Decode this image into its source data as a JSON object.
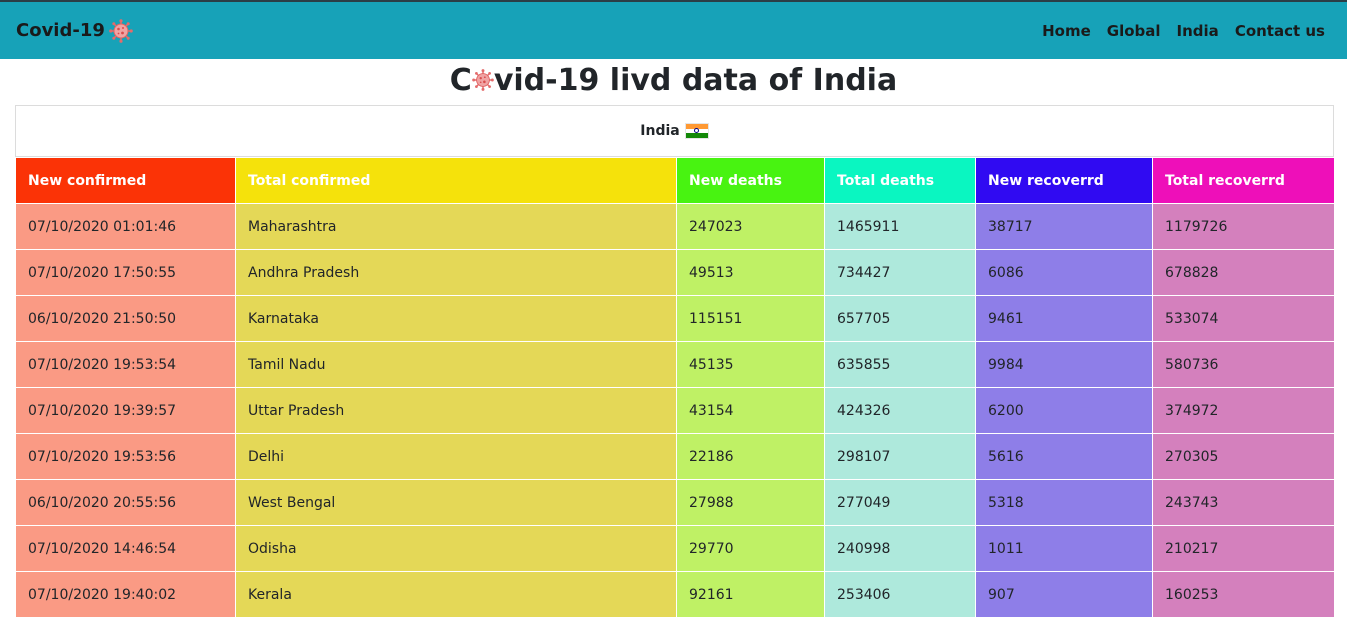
{
  "navbar": {
    "brand": "Covid-19",
    "brand_icon": "virus-icon",
    "links": [
      "Home",
      "Global",
      "India",
      "Contact us"
    ]
  },
  "title": {
    "before": "C",
    "after": "vid-19 livd data of India",
    "icon": "virus-icon"
  },
  "country": {
    "name": "India",
    "flag_icon": "india-flag-icon"
  },
  "table": {
    "headers": [
      "New confirmed",
      "Total confirmed",
      "New deaths",
      "Total deaths",
      "New recoverrd",
      "Total recoverrd"
    ],
    "rows": [
      [
        "07/10/2020 01:01:46",
        "Maharashtra",
        "247023",
        "1465911",
        "38717",
        "1179726"
      ],
      [
        "07/10/2020 17:50:55",
        "Andhra Pradesh",
        "49513",
        "734427",
        "6086",
        "678828"
      ],
      [
        "06/10/2020 21:50:50",
        "Karnataka",
        "115151",
        "657705",
        "9461",
        "533074"
      ],
      [
        "07/10/2020 19:53:54",
        "Tamil Nadu",
        "45135",
        "635855",
        "9984",
        "580736"
      ],
      [
        "07/10/2020 19:39:57",
        "Uttar Pradesh",
        "43154",
        "424326",
        "6200",
        "374972"
      ],
      [
        "07/10/2020 19:53:56",
        "Delhi",
        "22186",
        "298107",
        "5616",
        "270305"
      ],
      [
        "06/10/2020 20:55:56",
        "West Bengal",
        "27988",
        "277049",
        "5318",
        "243743"
      ],
      [
        "07/10/2020 14:46:54",
        "Odisha",
        "29770",
        "240998",
        "1011",
        "210217"
      ],
      [
        "07/10/2020 19:40:02",
        "Kerala",
        "92161",
        "253406",
        "907",
        "160253"
      ]
    ]
  },
  "colors": {
    "navbar": "#17a2b8",
    "header_cols": [
      "#fb3306",
      "#f5e20b",
      "#48f311",
      "#0af6c1",
      "#300af2",
      "#ee0fb9"
    ],
    "body_cols": [
      "#fa9a84",
      "#e4d857",
      "#bff165",
      "#aee9dc",
      "#8e7ee8",
      "#d480bd"
    ]
  }
}
